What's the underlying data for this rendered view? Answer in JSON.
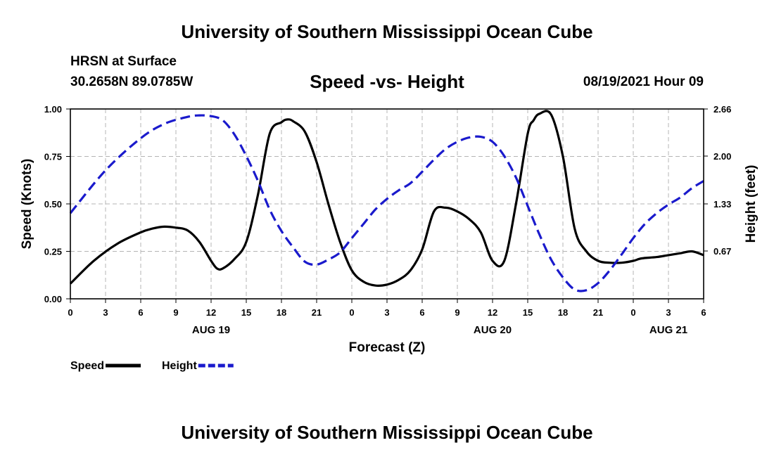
{
  "header": {
    "top_title": "University of Southern Mississippi Ocean Cube",
    "station": "HRSN at Surface",
    "coords": "30.2658N  89.0785W",
    "subtitle": "Speed -vs- Height",
    "datetime": "08/19/2021 Hour 09"
  },
  "footer": {
    "bottom_title": "University of Southern Mississippi Ocean Cube"
  },
  "chart_data": {
    "type": "line",
    "title": "Speed -vs- Height",
    "xlabel": "Forecast (Z)",
    "ylabel": "Speed (Knots)",
    "y2label": "Height (feet)",
    "xlim": [
      0,
      54
    ],
    "ylim": [
      0,
      1
    ],
    "y2lim": [
      0,
      2.66
    ],
    "grid": true,
    "x_ticks": [
      0,
      3,
      6,
      9,
      12,
      15,
      18,
      21,
      24,
      27,
      30,
      33,
      36,
      39,
      42,
      45,
      48,
      51,
      54
    ],
    "x_tick_labels": [
      "0",
      "3",
      "6",
      "9",
      "12",
      "15",
      "18",
      "21",
      "0",
      "3",
      "6",
      "9",
      "12",
      "15",
      "18",
      "21",
      "0",
      "3",
      "6"
    ],
    "day_labels": [
      {
        "x": 12,
        "label": "AUG 19"
      },
      {
        "x": 36,
        "label": "AUG 20"
      },
      {
        "x": 51,
        "label": "AUG 21"
      }
    ],
    "y_ticks": [
      0,
      0.25,
      0.5,
      0.75,
      1.0
    ],
    "y_tick_labels": [
      "0.00",
      "0.25",
      "0.50",
      "0.75",
      "1.00"
    ],
    "y2_ticks": [
      0.67,
      1.33,
      2.0,
      2.66
    ],
    "y2_tick_labels": [
      "0.67",
      "1.33",
      "2.00",
      "2.66"
    ],
    "legend_position": "bottom-left",
    "series": [
      {
        "name": "Speed",
        "axis": "left",
        "color": "#000000",
        "dash": "solid",
        "x": [
          0,
          2,
          4,
          6,
          7,
          8,
          9,
          10,
          11,
          12,
          12.5,
          13,
          14,
          15,
          16,
          17,
          18,
          18.5,
          19,
          20,
          21,
          22,
          23,
          24,
          25,
          26,
          27,
          28,
          29,
          30,
          31,
          32,
          33,
          34,
          35,
          36,
          37,
          38,
          39,
          39.5,
          40,
          41,
          42,
          43,
          44,
          45,
          46,
          47,
          48,
          48.5,
          49,
          50,
          51,
          52,
          53,
          54
        ],
        "values": [
          0.08,
          0.2,
          0.29,
          0.35,
          0.37,
          0.38,
          0.375,
          0.36,
          0.3,
          0.2,
          0.16,
          0.16,
          0.21,
          0.3,
          0.55,
          0.87,
          0.93,
          0.945,
          0.935,
          0.88,
          0.72,
          0.5,
          0.3,
          0.15,
          0.09,
          0.07,
          0.075,
          0.1,
          0.15,
          0.26,
          0.46,
          0.48,
          0.46,
          0.42,
          0.35,
          0.2,
          0.2,
          0.5,
          0.87,
          0.94,
          0.975,
          0.97,
          0.75,
          0.37,
          0.25,
          0.2,
          0.19,
          0.19,
          0.2,
          0.21,
          0.215,
          0.22,
          0.23,
          0.24,
          0.25,
          0.23
        ]
      },
      {
        "name": "Height",
        "axis": "right",
        "color": "#1a1acc",
        "dash": "dashed",
        "x": [
          0,
          3,
          6,
          8,
          10,
          11,
          12,
          13,
          14,
          15,
          16,
          17,
          18,
          19,
          20,
          21,
          22,
          23,
          24,
          25,
          26,
          27,
          28,
          29,
          30,
          31,
          32,
          33,
          34,
          35,
          36,
          37,
          38,
          39,
          40,
          41,
          42,
          43,
          44,
          45,
          46,
          47,
          48,
          49,
          50,
          51,
          52,
          53,
          54
        ],
        "values": [
          1.2,
          1.8,
          2.25,
          2.45,
          2.55,
          2.57,
          2.56,
          2.5,
          2.3,
          2.0,
          1.65,
          1.25,
          0.95,
          0.72,
          0.52,
          0.48,
          0.55,
          0.65,
          0.85,
          1.05,
          1.25,
          1.4,
          1.52,
          1.62,
          1.78,
          1.95,
          2.1,
          2.2,
          2.26,
          2.27,
          2.2,
          2.0,
          1.7,
          1.3,
          0.9,
          0.55,
          0.3,
          0.13,
          0.12,
          0.22,
          0.4,
          0.62,
          0.85,
          1.05,
          1.2,
          1.32,
          1.42,
          1.55,
          1.65
        ]
      }
    ]
  }
}
